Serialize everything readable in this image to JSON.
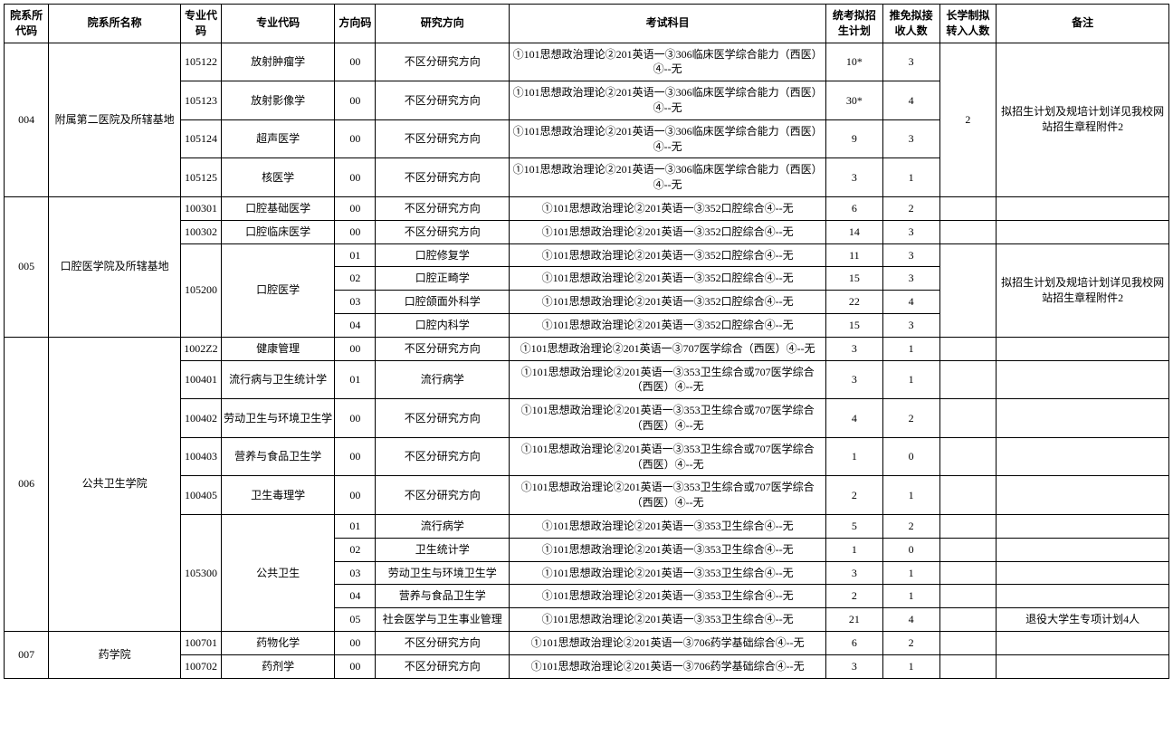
{
  "headers": {
    "dept_code": "院系所代码",
    "dept_name": "院系所名称",
    "major_code": "专业代码",
    "major_name": "专业代码",
    "dir_code": "方向码",
    "dir_name": "研究方向",
    "exam": "考试科目",
    "plan1": "统考拟招生计划",
    "plan2": "推免拟接收人数",
    "plan3": "长学制拟转入人数",
    "remark": "备注"
  },
  "rows": [
    {
      "dept_code": "004",
      "dept_name": "附属第二医院及所辖基地",
      "major_code": "105122",
      "major_name": "放射肿瘤学",
      "dir_code": "00",
      "dir_name": "不区分研究方向",
      "exam": "①101思想政治理论②201英语一③306临床医学综合能力（西医）④--无",
      "plan1": "10*",
      "plan2": "3",
      "plan3": "",
      "remark": "拟招生计划及规培计划详见我校网站招生章程附件2",
      "dept_code_rs": 4,
      "dept_name_rs": 4,
      "remark_rs": 4,
      "plan3_rs": 4,
      "plan3_val": "2"
    },
    {
      "major_code": "105123",
      "major_name": "放射影像学",
      "dir_code": "00",
      "dir_name": "不区分研究方向",
      "exam": "①101思想政治理论②201英语一③306临床医学综合能力（西医）④--无",
      "plan1": "30*",
      "plan2": "4"
    },
    {
      "major_code": "105124",
      "major_name": "超声医学",
      "dir_code": "00",
      "dir_name": "不区分研究方向",
      "exam": "①101思想政治理论②201英语一③306临床医学综合能力（西医）④--无",
      "plan1": "9",
      "plan2": "3"
    },
    {
      "major_code": "105125",
      "major_name": "核医学",
      "dir_code": "00",
      "dir_name": "不区分研究方向",
      "exam": "①101思想政治理论②201英语一③306临床医学综合能力（西医）④--无",
      "plan1": "3",
      "plan2": "1"
    },
    {
      "dept_code": "005",
      "dept_name": "口腔医学院及所辖基地",
      "major_code": "100301",
      "major_name": "口腔基础医学",
      "dir_code": "00",
      "dir_name": "不区分研究方向",
      "exam": "①101思想政治理论②201英语一③352口腔综合④--无",
      "plan1": "6",
      "plan2": "2",
      "plan3": "",
      "remark": "",
      "dept_code_rs": 6,
      "dept_name_rs": 6
    },
    {
      "major_code": "100302",
      "major_name": "口腔临床医学",
      "dir_code": "00",
      "dir_name": "不区分研究方向",
      "exam": "①101思想政治理论②201英语一③352口腔综合④--无",
      "plan1": "14",
      "plan2": "3",
      "plan3": "",
      "remark": ""
    },
    {
      "major_code": "105200",
      "major_name": "口腔医学",
      "dir_code": "01",
      "dir_name": "口腔修复学",
      "exam": "①101思想政治理论②201英语一③352口腔综合④--无",
      "plan1": "11",
      "plan2": "3",
      "plan3": "",
      "remark": "拟招生计划及规培计划详见我校网站招生章程附件2",
      "major_code_rs": 4,
      "major_name_rs": 4,
      "remark_rs": 4,
      "plan3_rs": 4
    },
    {
      "dir_code": "02",
      "dir_name": "口腔正畸学",
      "exam": "①101思想政治理论②201英语一③352口腔综合④--无",
      "plan1": "15",
      "plan2": "3"
    },
    {
      "dir_code": "03",
      "dir_name": "口腔颌面外科学",
      "exam": "①101思想政治理论②201英语一③352口腔综合④--无",
      "plan1": "22",
      "plan2": "4"
    },
    {
      "dir_code": "04",
      "dir_name": "口腔内科学",
      "exam": "①101思想政治理论②201英语一③352口腔综合④--无",
      "plan1": "15",
      "plan2": "3"
    },
    {
      "dept_code": "006",
      "dept_name": "公共卫生学院",
      "major_code": "1002Z2",
      "major_name": "健康管理",
      "dir_code": "00",
      "dir_name": "不区分研究方向",
      "exam": "①101思想政治理论②201英语一③707医学综合（西医）④--无",
      "plan1": "3",
      "plan2": "1",
      "plan3": "",
      "remark": "",
      "dept_code_rs": 10,
      "dept_name_rs": 10
    },
    {
      "major_code": "100401",
      "major_name": "流行病与卫生统计学",
      "dir_code": "01",
      "dir_name": "流行病学",
      "exam": "①101思想政治理论②201英语一③353卫生综合或707医学综合（西医）④--无",
      "plan1": "3",
      "plan2": "1",
      "plan3": "",
      "remark": ""
    },
    {
      "major_code": "100402",
      "major_name": "劳动卫生与环境卫生学",
      "dir_code": "00",
      "dir_name": "不区分研究方向",
      "exam": "①101思想政治理论②201英语一③353卫生综合或707医学综合（西医）④--无",
      "plan1": "4",
      "plan2": "2",
      "plan3": "",
      "remark": ""
    },
    {
      "major_code": "100403",
      "major_name": "营养与食品卫生学",
      "dir_code": "00",
      "dir_name": "不区分研究方向",
      "exam": "①101思想政治理论②201英语一③353卫生综合或707医学综合（西医）④--无",
      "plan1": "1",
      "plan2": "0",
      "plan3": "",
      "remark": ""
    },
    {
      "major_code": "100405",
      "major_name": "卫生毒理学",
      "dir_code": "00",
      "dir_name": "不区分研究方向",
      "exam": "①101思想政治理论②201英语一③353卫生综合或707医学综合（西医）④--无",
      "plan1": "2",
      "plan2": "1",
      "plan3": "",
      "remark": ""
    },
    {
      "major_code": "105300",
      "major_name": "公共卫生",
      "dir_code": "01",
      "dir_name": "流行病学",
      "exam": "①101思想政治理论②201英语一③353卫生综合④--无",
      "plan1": "5",
      "plan2": "2",
      "plan3": "",
      "remark": "",
      "major_code_rs": 5,
      "major_name_rs": 5
    },
    {
      "dir_code": "02",
      "dir_name": "卫生统计学",
      "exam": "①101思想政治理论②201英语一③353卫生综合④--无",
      "plan1": "1",
      "plan2": "0",
      "plan3": "",
      "remark": ""
    },
    {
      "dir_code": "03",
      "dir_name": "劳动卫生与环境卫生学",
      "exam": "①101思想政治理论②201英语一③353卫生综合④--无",
      "plan1": "3",
      "plan2": "1",
      "plan3": "",
      "remark": ""
    },
    {
      "dir_code": "04",
      "dir_name": "营养与食品卫生学",
      "exam": "①101思想政治理论②201英语一③353卫生综合④--无",
      "plan1": "2",
      "plan2": "1",
      "plan3": "",
      "remark": ""
    },
    {
      "dir_code": "05",
      "dir_name": "社会医学与卫生事业管理",
      "exam": "①101思想政治理论②201英语一③353卫生综合④--无",
      "plan1": "21",
      "plan2": "4",
      "plan3": "",
      "remark": "退役大学生专项计划4人"
    },
    {
      "dept_code": "007",
      "dept_name": "药学院",
      "major_code": "100701",
      "major_name": "药物化学",
      "dir_code": "00",
      "dir_name": "不区分研究方向",
      "exam": "①101思想政治理论②201英语一③706药学基础综合④--无",
      "plan1": "6",
      "plan2": "2",
      "plan3": "",
      "remark": "",
      "dept_code_rs": 2,
      "dept_name_rs": 2
    },
    {
      "major_code": "100702",
      "major_name": "药剂学",
      "dir_code": "00",
      "dir_name": "不区分研究方向",
      "exam": "①101思想政治理论②201英语一③706药学基础综合④--无",
      "plan1": "3",
      "plan2": "1",
      "plan3": "",
      "remark": ""
    }
  ]
}
